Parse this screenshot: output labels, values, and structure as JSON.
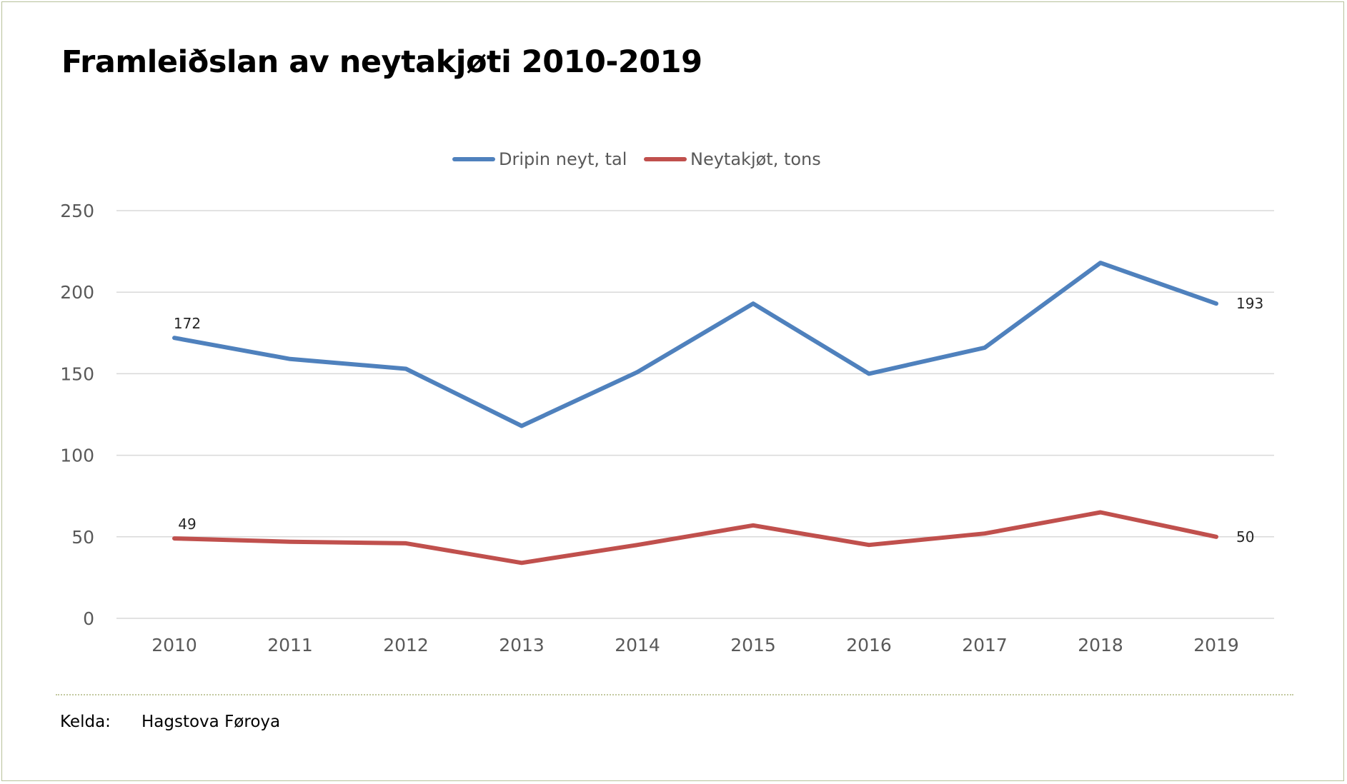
{
  "chart_data": {
    "type": "line",
    "title": "Framleiðslan av neytakjøti 2010-2019",
    "categories": [
      "2010",
      "2011",
      "2012",
      "2013",
      "2014",
      "2015",
      "2016",
      "2017",
      "2018",
      "2019"
    ],
    "series": [
      {
        "name": "Dripin neyt, tal",
        "color": "#4f81bd",
        "values": [
          172,
          159,
          153,
          118,
          151,
          193,
          150,
          166,
          218,
          193
        ],
        "labels": [
          {
            "index": 0,
            "text": "172"
          },
          {
            "index": 9,
            "text": "193"
          }
        ]
      },
      {
        "name": "Neytakjøt, tons",
        "color": "#c0504d",
        "values": [
          49,
          47,
          46,
          34,
          45,
          57,
          45,
          52,
          65,
          50
        ],
        "labels": [
          {
            "index": 0,
            "text": "49"
          },
          {
            "index": 9,
            "text": "50"
          }
        ]
      }
    ],
    "ylim": [
      0,
      250
    ],
    "yticks": [
      "0",
      "50",
      "100",
      "150",
      "200",
      "250"
    ],
    "grid": true,
    "legend": "top-center",
    "xlabel": "",
    "ylabel": ""
  },
  "footer": {
    "source_label": "Kelda:",
    "source_value": "Hagstova Føroya"
  }
}
